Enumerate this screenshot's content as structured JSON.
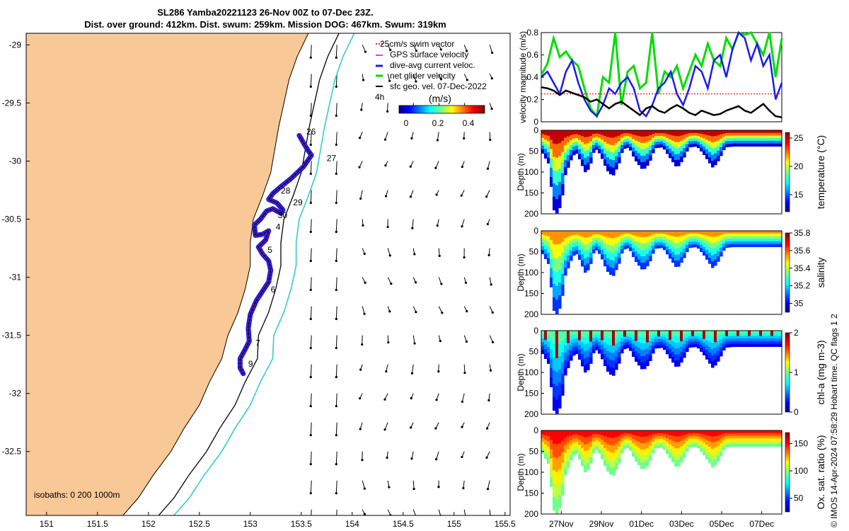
{
  "title": {
    "line1": "SL286 Yamba20221123 26-Nov 00Z to 07-Dec 23Z.",
    "line2": "Dist. over ground: 412km. Dist. swum: 259km. Mission DOG: 467km. Swum: 319km"
  },
  "footer_credit": "© IMOS 14-Apr-2024 07:58:29 Hobart time. QC flags 1  2",
  "colors": {
    "land": "#f8c896",
    "track_swim": "#e02020",
    "track_current": "#1a1af0",
    "net_velocity": "#00dd00",
    "isobath_200": "#000000",
    "isobath_1000": "#33cccc",
    "black_line": "#000000"
  },
  "chart_data": [
    {
      "type": "map",
      "name": "track-map",
      "xlim": [
        150.8,
        155.55
      ],
      "ylim": [
        -33.05,
        -28.9
      ],
      "x_ticks": [
        151,
        151.5,
        152,
        152.5,
        153,
        153.5,
        154,
        154.5,
        155,
        155.5
      ],
      "x_tick_labels": [
        "151",
        "151.5",
        "152",
        "152.5",
        "153",
        "153.5",
        "154",
        "154.5",
        "155",
        "155.5"
      ],
      "y_ticks": [
        -29,
        -29.5,
        -30,
        -30.5,
        -31,
        -31.5,
        -32,
        -32.5
      ],
      "y_tick_labels": [
        "-29",
        "-29.5",
        "-30",
        "-30.5",
        "-31",
        "-31.5",
        "-32",
        "-32.5"
      ],
      "legend": [
        "25cm/s swim vector",
        "GPS surface velocity",
        "dive-avg current veloc.",
        "net glider velocity",
        "sfc geo. vel. 07-Dec-2022"
      ],
      "colorbar": {
        "unit": "(m/s)",
        "range": [
          0,
          0.5
        ],
        "ticks": [
          "0",
          "0.2",
          "0.4"
        ]
      },
      "scale_label": "4h",
      "isobaths_label": "isobaths: 0   200  1000m",
      "day_labels": [
        {
          "label": "26",
          "lon": 153.55,
          "lat": -29.77
        },
        {
          "label": "27",
          "lon": 153.75,
          "lat": -30.0
        },
        {
          "label": "28",
          "lon": 153.3,
          "lat": -30.28
        },
        {
          "label": "29",
          "lon": 153.42,
          "lat": -30.38
        },
        {
          "label": "30",
          "lon": 153.27,
          "lat": -30.49
        },
        {
          "label": "4",
          "lon": 153.25,
          "lat": -30.59
        },
        {
          "label": "5",
          "lon": 153.17,
          "lat": -30.79
        },
        {
          "label": "6",
          "lon": 153.2,
          "lat": -31.13
        },
        {
          "label": "7",
          "lon": 153.05,
          "lat": -31.59
        },
        {
          "label": "9",
          "lon": 152.98,
          "lat": -31.77
        }
      ],
      "track": [
        [
          153.48,
          -29.78
        ],
        [
          153.56,
          -29.9
        ],
        [
          153.6,
          -29.95
        ],
        [
          153.52,
          -30.05
        ],
        [
          153.4,
          -30.15
        ],
        [
          153.3,
          -30.22
        ],
        [
          153.22,
          -30.28
        ],
        [
          153.18,
          -30.33
        ],
        [
          153.26,
          -30.36
        ],
        [
          153.32,
          -30.42
        ],
        [
          153.3,
          -30.45
        ],
        [
          153.22,
          -30.41
        ],
        [
          153.16,
          -30.43
        ],
        [
          153.1,
          -30.5
        ],
        [
          153.04,
          -30.55
        ],
        [
          153.05,
          -30.64
        ],
        [
          153.12,
          -30.63
        ],
        [
          153.18,
          -30.6
        ],
        [
          153.15,
          -30.68
        ],
        [
          153.08,
          -30.74
        ],
        [
          153.12,
          -30.8
        ],
        [
          153.18,
          -30.86
        ],
        [
          153.2,
          -30.94
        ],
        [
          153.18,
          -31.04
        ],
        [
          153.12,
          -31.12
        ],
        [
          153.06,
          -31.2
        ],
        [
          153.0,
          -31.32
        ],
        [
          152.98,
          -31.44
        ],
        [
          152.99,
          -31.55
        ],
        [
          152.95,
          -31.62
        ],
        [
          152.9,
          -31.7
        ],
        [
          152.9,
          -31.78
        ],
        [
          152.93,
          -31.83
        ]
      ]
    },
    {
      "type": "line",
      "name": "velocity-magnitude",
      "ylabel": "velocity magnitude (m/s)",
      "ylim": [
        0,
        0.8
      ],
      "y_ticks": [
        "0",
        "0.2",
        "0.4",
        "0.6",
        "0.8"
      ],
      "x_range_days": [
        0,
        12
      ],
      "series": [
        {
          "name": "net glider velocity",
          "color": "#00dd00",
          "values": [
            0.42,
            0.52,
            0.75,
            0.58,
            0.63,
            0.55,
            0.5,
            0.3,
            0.12,
            0.05,
            0.4,
            0.35,
            0.8,
            0.15,
            0.45,
            0.5,
            0.3,
            0.35,
            0.8,
            0.25,
            0.45,
            0.4,
            0.5,
            0.3,
            0.45,
            0.6,
            0.5,
            0.7,
            0.55,
            0.5,
            0.75,
            0.65,
            0.8,
            0.78,
            0.8,
            0.7,
            0.6,
            0.8,
            0.4,
            0.75
          ]
        },
        {
          "name": "dive-avg current veloc.",
          "color": "#1a1af0",
          "values": [
            0.4,
            0.45,
            0.35,
            0.25,
            0.45,
            0.55,
            0.35,
            0.2,
            0.1,
            0.05,
            0.15,
            0.3,
            0.25,
            0.35,
            0.4,
            0.3,
            0.1,
            0.05,
            0.15,
            0.3,
            0.35,
            0.45,
            0.25,
            0.15,
            0.3,
            0.5,
            0.45,
            0.3,
            0.55,
            0.6,
            0.4,
            0.65,
            0.8,
            0.75,
            0.55,
            0.7,
            0.5,
            0.6,
            0.2,
            0.35
          ]
        },
        {
          "name": "25cm/s swim vector",
          "color": "#e02020",
          "values": [
            0.25,
            0.25,
            0.25,
            0.25,
            0.25,
            0.25,
            0.25,
            0.25,
            0.25,
            0.25,
            0.25,
            0.25,
            0.25,
            0.25,
            0.25,
            0.25,
            0.25,
            0.25,
            0.25,
            0.25,
            0.25,
            0.25,
            0.25,
            0.25,
            0.25,
            0.25,
            0.25,
            0.25,
            0.25,
            0.25,
            0.25,
            0.25,
            0.25,
            0.25,
            0.25,
            0.25,
            0.25,
            0.25,
            0.25,
            0.25
          ]
        },
        {
          "name": "sfc geo. vel.",
          "color": "#000000",
          "values": [
            0.31,
            0.3,
            0.28,
            0.24,
            0.28,
            0.26,
            0.24,
            0.22,
            0.18,
            0.2,
            0.16,
            0.12,
            0.16,
            0.18,
            0.14,
            0.1,
            0.06,
            0.12,
            0.14,
            0.1,
            0.08,
            0.12,
            0.15,
            0.12,
            0.08,
            0.06,
            0.1,
            0.08,
            0.06,
            0.07,
            0.1,
            0.12,
            0.14,
            0.1,
            0.08,
            0.12,
            0.16,
            0.1,
            0.05,
            0.04
          ]
        }
      ]
    },
    {
      "type": "heatmap",
      "name": "temperature-section",
      "ylabel": "Depth (m)",
      "y_ticks": [
        "0",
        "50",
        "100",
        "150",
        "200"
      ],
      "colorbar_label": "temperature (°C)",
      "colorbar_ticks": [
        "25",
        "20",
        "15"
      ],
      "range": [
        12,
        26
      ],
      "surface_value": 25,
      "deep_value": 13
    },
    {
      "type": "heatmap",
      "name": "salinity-section",
      "ylabel": "Depth (m)",
      "y_ticks": [
        "0",
        "50",
        "100",
        "150",
        "200"
      ],
      "colorbar_label": "salinity",
      "colorbar_ticks": [
        "35.8",
        "35.6",
        "35.4",
        "35.2",
        "35"
      ],
      "range": [
        34.9,
        35.8
      ],
      "surface_value": 35.55,
      "deep_value": 35.05
    },
    {
      "type": "heatmap",
      "name": "chla-section",
      "ylabel": "Depth (m)",
      "y_ticks": [
        "0",
        "50",
        "100",
        "150",
        "200"
      ],
      "colorbar_label": "chl-a (mg m-3)",
      "colorbar_ticks": [
        "2",
        "1",
        "0"
      ],
      "range": [
        0,
        2
      ],
      "surface_value": 0.9,
      "deep_value": 0.2
    },
    {
      "type": "heatmap",
      "name": "oxygen-section",
      "ylabel": "Depth (m)",
      "y_ticks": [
        "0",
        "50",
        "100",
        "150",
        "200"
      ],
      "colorbar_label": "Ox. sat. ratio (%)",
      "colorbar_ticks": [
        "150",
        "100",
        "50"
      ],
      "range": [
        25,
        170
      ],
      "surface_value": 150,
      "deep_value": 95
    }
  ],
  "time_axis": {
    "labels": [
      "27Nov",
      "29Nov",
      "01Dec",
      "03Dec",
      "05Dec",
      "07Dec"
    ],
    "days": [
      1,
      3,
      5,
      7,
      9,
      11
    ],
    "range_days": [
      0,
      12
    ]
  },
  "dive_profile": {
    "description_days": [
      0,
      12
    ],
    "points": [
      [
        0.0,
        55
      ],
      [
        0.3,
        80
      ],
      [
        0.55,
        190
      ],
      [
        0.75,
        200
      ],
      [
        0.95,
        170
      ],
      [
        1.1,
        110
      ],
      [
        1.3,
        85
      ],
      [
        1.5,
        60
      ],
      [
        1.7,
        55
      ],
      [
        1.9,
        75
      ],
      [
        2.1,
        100
      ],
      [
        2.35,
        90
      ],
      [
        2.5,
        55
      ],
      [
        2.7,
        45
      ],
      [
        2.9,
        60
      ],
      [
        3.2,
        95
      ],
      [
        3.5,
        110
      ],
      [
        3.8,
        80
      ],
      [
        4.0,
        45
      ],
      [
        4.3,
        40
      ],
      [
        4.6,
        70
      ],
      [
        5.0,
        95
      ],
      [
        5.3,
        80
      ],
      [
        5.6,
        42
      ],
      [
        6.0,
        40
      ],
      [
        6.3,
        62
      ],
      [
        6.7,
        90
      ],
      [
        7.0,
        70
      ],
      [
        7.3,
        40
      ],
      [
        7.7,
        38
      ],
      [
        8.0,
        55
      ],
      [
        8.5,
        90
      ],
      [
        8.8,
        70
      ],
      [
        9.1,
        40
      ],
      [
        9.5,
        38
      ],
      [
        10.0,
        38
      ],
      [
        10.5,
        38
      ],
      [
        11.0,
        38
      ],
      [
        11.5,
        38
      ],
      [
        12.0,
        38
      ]
    ]
  }
}
